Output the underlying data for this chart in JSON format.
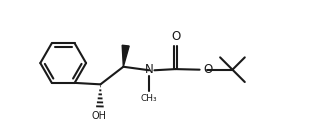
{
  "background": "#ffffff",
  "line_color": "#1a1a1a",
  "line_width": 1.5,
  "fig_width": 3.2,
  "fig_height": 1.32,
  "dpi": 100,
  "xlim": [
    -0.3,
    10.0
  ],
  "ylim": [
    -0.2,
    4.3
  ]
}
